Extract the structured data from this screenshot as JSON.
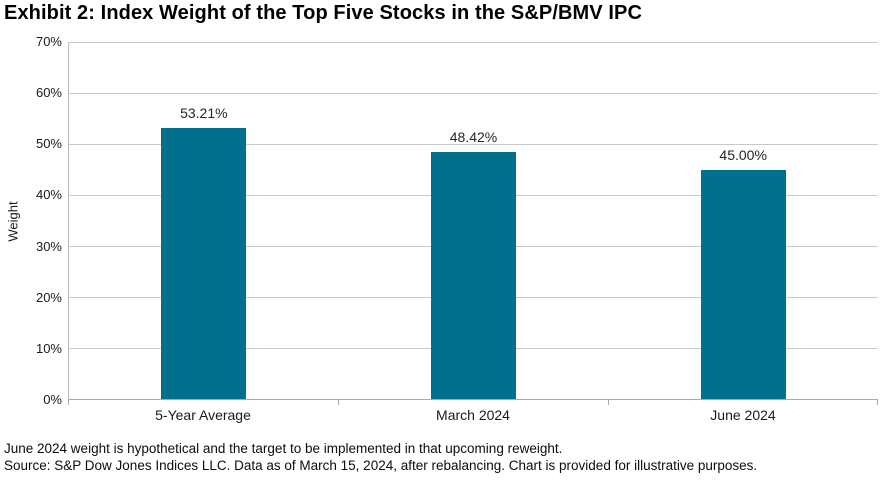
{
  "title": "Exhibit 2: Index Weight of the Top Five Stocks in the S&P/BMV IPC",
  "chart_data": {
    "type": "bar",
    "categories": [
      "5-Year Average",
      "March 2024",
      "June 2024"
    ],
    "values": [
      53.21,
      48.42,
      45.0
    ],
    "value_labels": [
      "53.21%",
      "48.42%",
      "45.00%"
    ],
    "title": "Exhibit 2: Index Weight of the Top Five Stocks in the S&P/BMV IPC",
    "xlabel": "",
    "ylabel": "Weight",
    "ylim": [
      0,
      70
    ],
    "yticks": [
      0,
      10,
      20,
      30,
      40,
      50,
      60,
      70
    ],
    "ytick_labels": [
      "0%",
      "10%",
      "20%",
      "30%",
      "40%",
      "50%",
      "60%",
      "70%"
    ],
    "grid": "horizontal",
    "legend": "none",
    "bar_color": "#00708C",
    "gridline_color": "#c9c9c9",
    "axis_color": "#a9a9a9"
  },
  "footnotes": {
    "line1": "June 2024 weight is hypothetical and the target to be implemented in that upcoming reweight.",
    "line2": "Source: S&P Dow Jones Indices LLC. Data as of March 15, 2024, after rebalancing. Chart is provided for illustrative purposes."
  }
}
